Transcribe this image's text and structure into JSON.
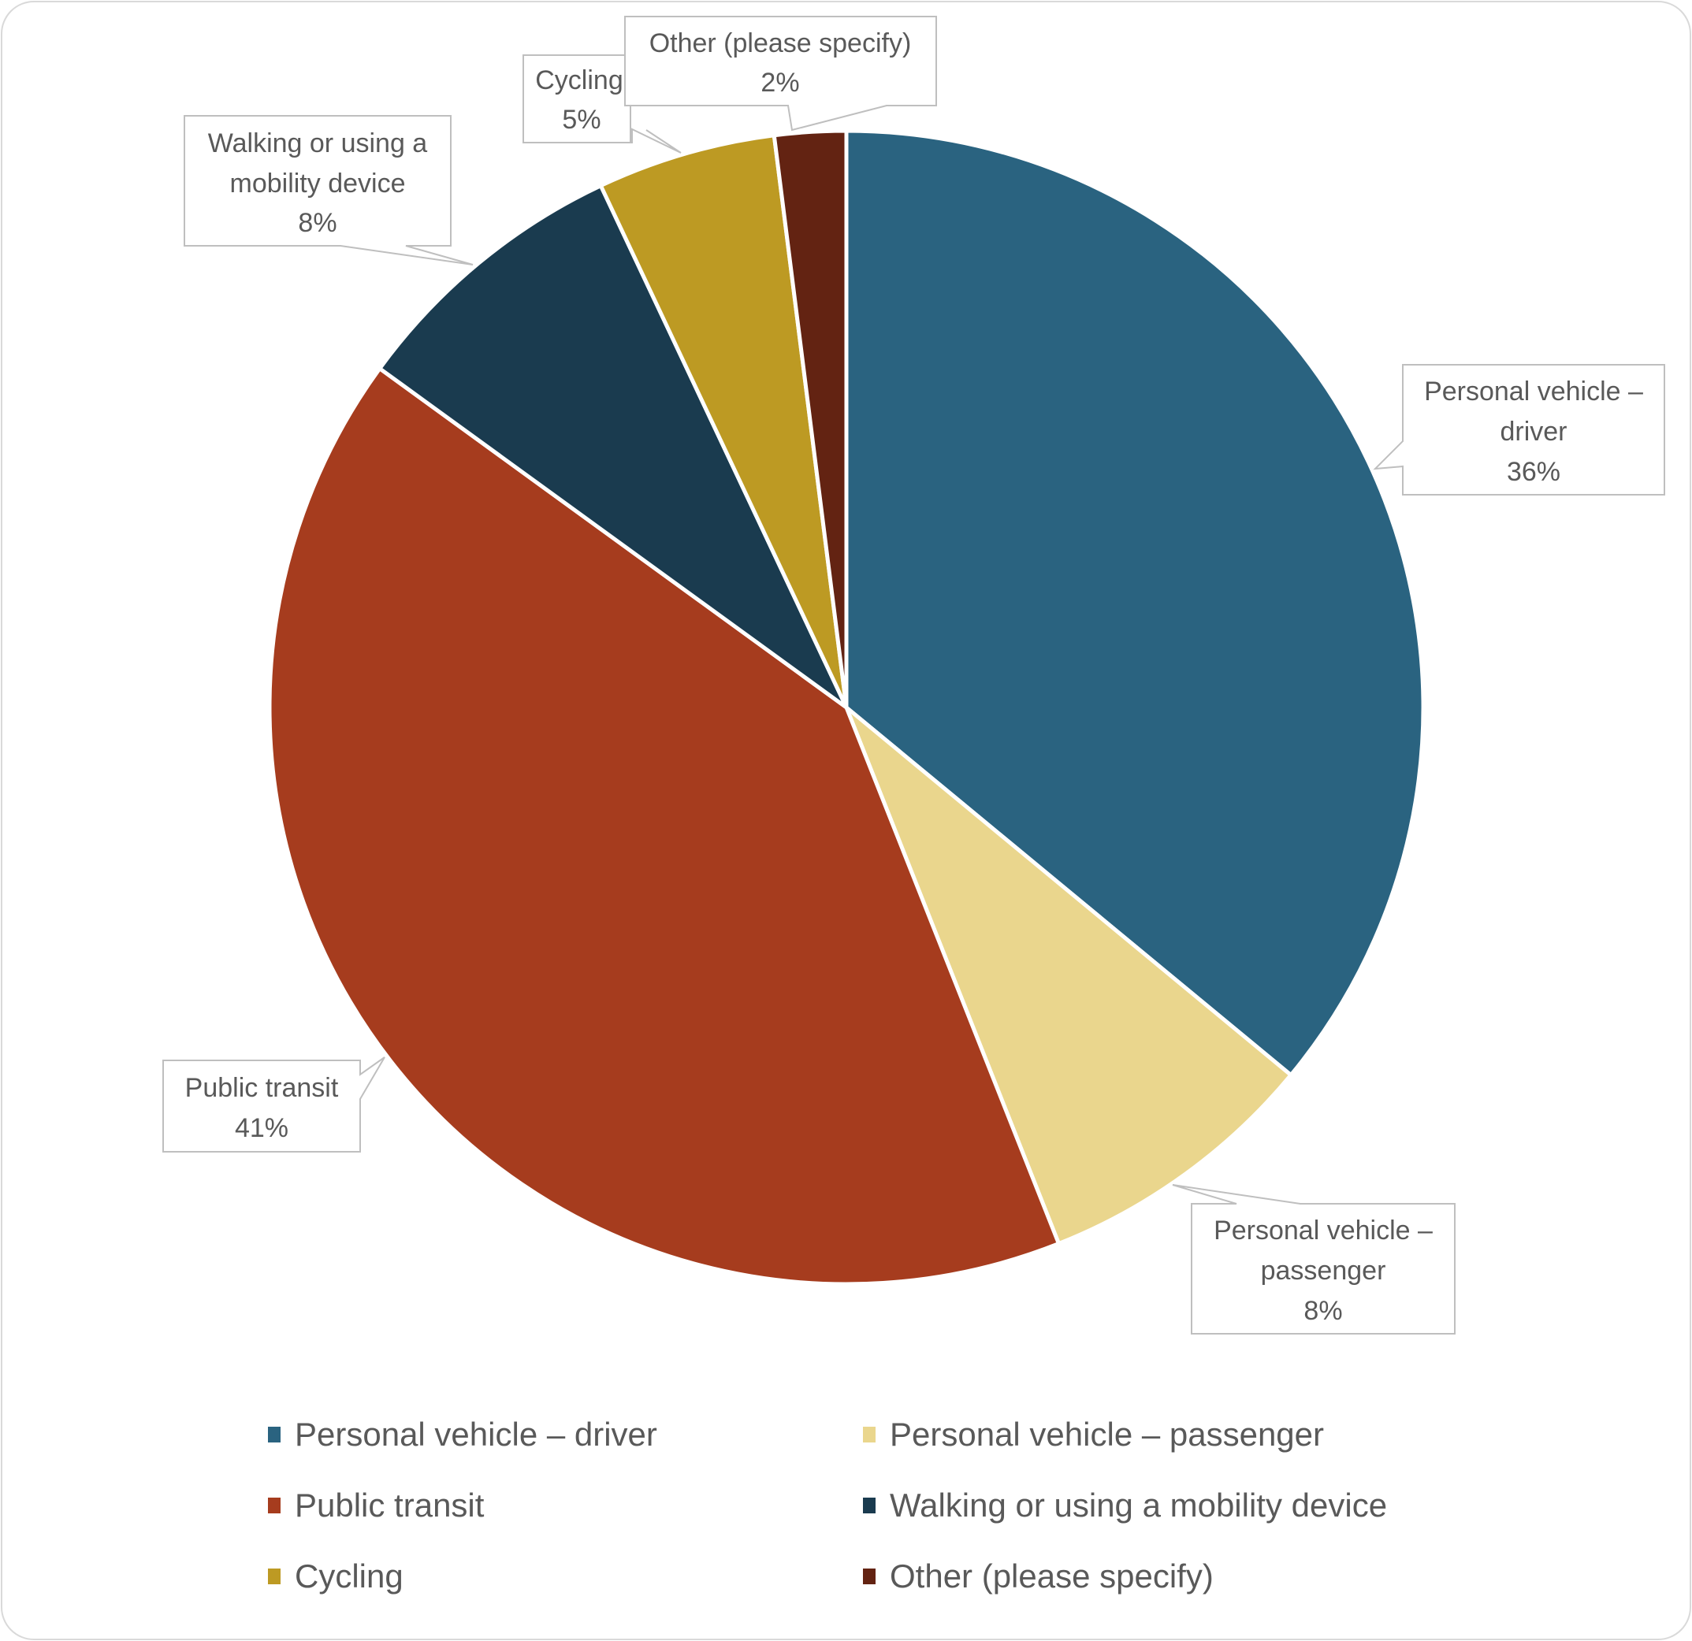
{
  "chart_data": {
    "type": "pie",
    "title": "",
    "categories": [
      "Personal vehicle – driver",
      "Personal vehicle – passenger",
      "Public transit",
      "Walking or using a mobility device",
      "Cycling",
      "Other (please specify)"
    ],
    "values": [
      36,
      8,
      41,
      8,
      5,
      2
    ],
    "value_labels": [
      "36%",
      "8%",
      "41%",
      "8%",
      "5%",
      "2%"
    ],
    "colors": [
      "#2a6380",
      "#ead68d",
      "#a63c1e",
      "#1a3b4f",
      "#bd9a23",
      "#632312"
    ],
    "start_angle": "12 o'clock, clockwise",
    "legend_position": "bottom"
  },
  "labels": {
    "driver": {
      "line1": "Personal vehicle –",
      "line2": "driver",
      "pct": "36%"
    },
    "passenger": {
      "line1": "Personal vehicle –",
      "line2": "passenger",
      "pct": "8%"
    },
    "transit": {
      "line1": "Public transit",
      "pct": "41%"
    },
    "walking": {
      "line1": "Walking or using a",
      "line2": "mobility device",
      "pct": "8%"
    },
    "cycling": {
      "line1": "Cycling",
      "pct": "5%"
    },
    "other": {
      "line1": "Other (please specify)",
      "pct": "2%"
    }
  },
  "legend": [
    {
      "label": "Personal vehicle – driver",
      "color": "#2a6380"
    },
    {
      "label": "Personal vehicle – passenger",
      "color": "#ead68d"
    },
    {
      "label": "Public transit",
      "color": "#a63c1e"
    },
    {
      "label": "Walking or using a mobility device",
      "color": "#1a3b4f"
    },
    {
      "label": "Cycling",
      "color": "#bd9a23"
    },
    {
      "label": "Other (please specify)",
      "color": "#632312"
    }
  ]
}
